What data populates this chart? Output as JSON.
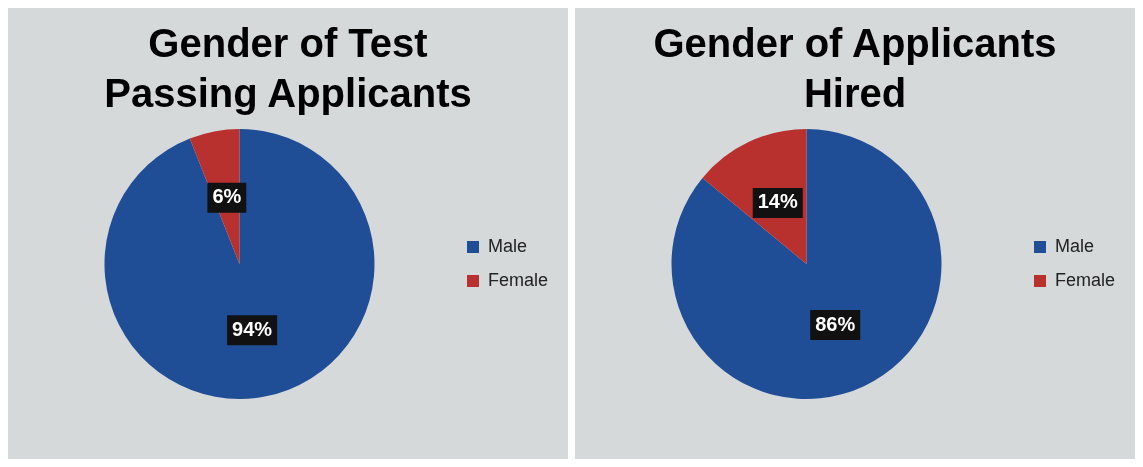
{
  "chart_data": [
    {
      "type": "pie",
      "title": "Gender of Test Passing Applicants",
      "categories": [
        "Male",
        "Female"
      ],
      "values": [
        94,
        6
      ],
      "colors": [
        "#1f4e96",
        "#b8312f"
      ],
      "value_labels": [
        "94%",
        "6%"
      ],
      "legend": "right"
    },
    {
      "type": "pie",
      "title": "Gender of Applicants Hired",
      "categories": [
        "Male",
        "Female"
      ],
      "values": [
        86,
        14
      ],
      "colors": [
        "#1f4e96",
        "#b8312f"
      ],
      "value_labels": [
        "86%",
        "14%"
      ],
      "legend": "right"
    }
  ]
}
